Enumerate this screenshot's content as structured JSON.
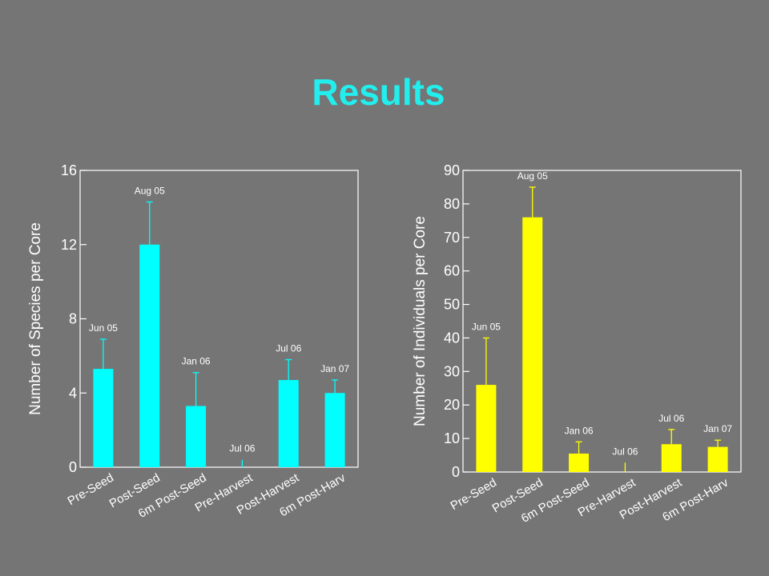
{
  "slide": {
    "title": "Results"
  },
  "chart_data": [
    {
      "type": "bar",
      "ylabel": "Number of Species per Core",
      "ylim": [
        0,
        16
      ],
      "yticks": [
        0,
        4,
        8,
        12,
        16
      ],
      "categories": [
        "Pre-Seed",
        "Post-Seed",
        "6m Post-Seed",
        "Pre-Harvest",
        "Post-Harvest",
        "6m Post-Harv"
      ],
      "date_labels": [
        "Jun 05",
        "Aug 05",
        "Jan 06",
        "Jul 06",
        "Jul 06",
        "Jan 07"
      ],
      "values": [
        5.3,
        12.0,
        3.3,
        0.0,
        4.7,
        4.0
      ],
      "error_upper": [
        6.9,
        14.3,
        5.1,
        0.4,
        5.8,
        4.7
      ],
      "bar_color": "#00ffff"
    },
    {
      "type": "bar",
      "ylabel": "Number of Individuals per Core",
      "ylim": [
        0,
        90
      ],
      "yticks": [
        0,
        10,
        20,
        30,
        40,
        50,
        60,
        70,
        80,
        90
      ],
      "categories": [
        "Pre-Seed",
        "Post-Seed",
        "6m Post-Seed",
        "Pre-Harvest",
        "Post-Harvest",
        "6m Post-Harv"
      ],
      "date_labels": [
        "Jun 05",
        "Aug 05",
        "Jan 06",
        "Jul 06",
        "Jul 06",
        "Jan 07"
      ],
      "values": [
        26.0,
        76.0,
        5.5,
        0.0,
        8.3,
        7.5
      ],
      "error_upper": [
        40.0,
        85.0,
        9.0,
        2.8,
        12.7,
        9.5
      ],
      "bar_color": "#ffff00"
    }
  ]
}
